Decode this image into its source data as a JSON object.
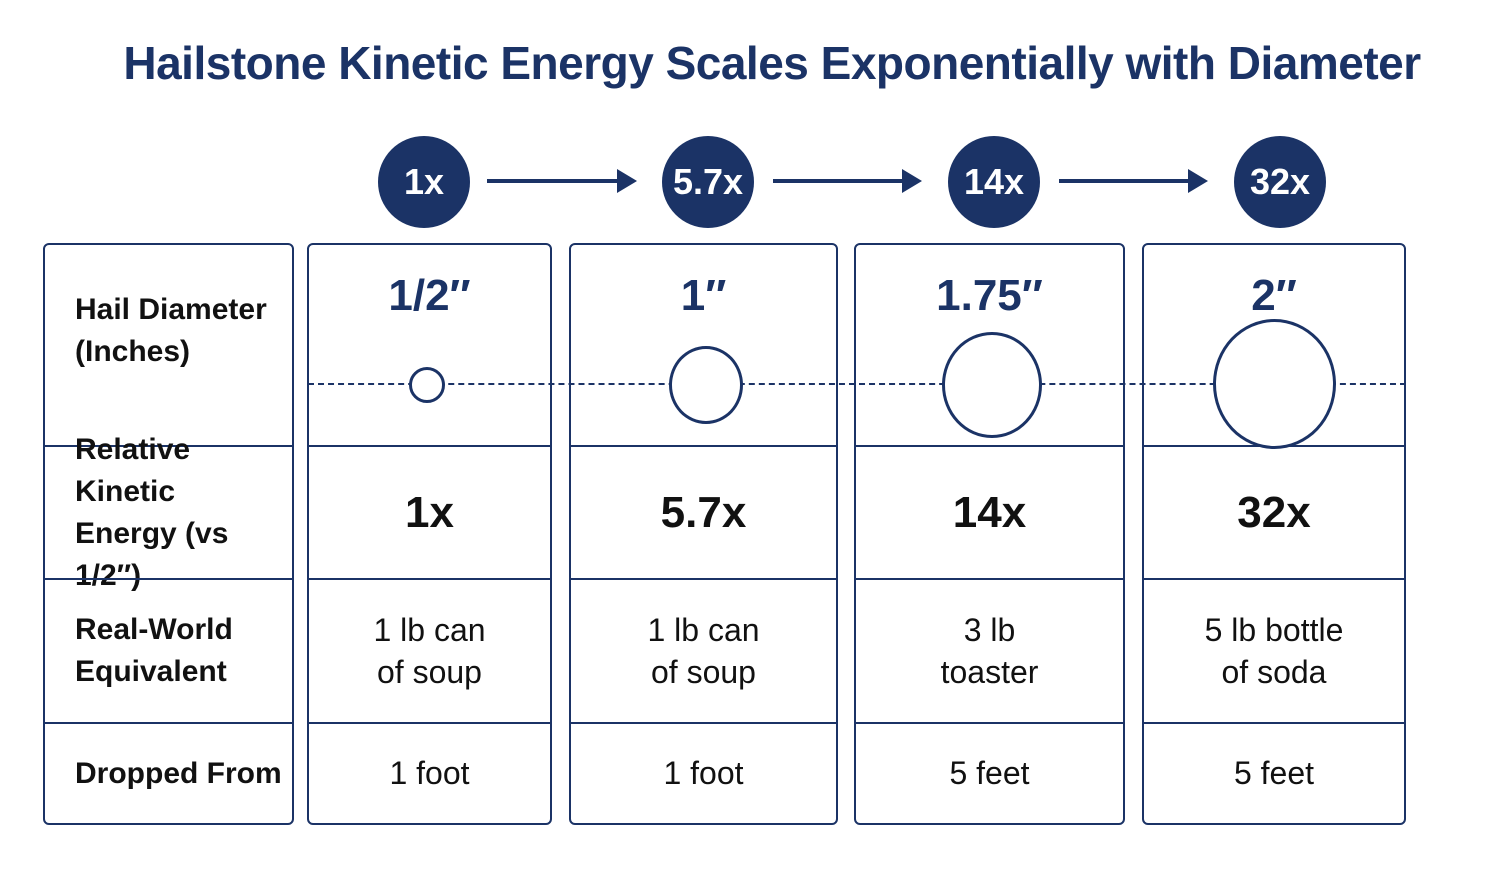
{
  "title": "Hailstone Kinetic Energy Scales Exponentially with Diameter",
  "colors": {
    "primary": "#1b3366",
    "text": "#111111",
    "background": "#ffffff"
  },
  "row_labels": {
    "diameter": [
      "Hail Diameter",
      "(Inches)"
    ],
    "energy": [
      "Relative Kinetic",
      "Energy (vs 1/2″)"
    ],
    "equivalent": [
      "Real-World",
      "Equivalent"
    ],
    "dropped": "Dropped From"
  },
  "badges": [
    "1x",
    "5.7x",
    "14x",
    "32x"
  ],
  "columns": [
    {
      "diameter": "1/2″",
      "diameter_in": 0.5,
      "energy": "1x",
      "equivalent": [
        "1 lb can",
        "of soup"
      ],
      "dropped": "1 foot"
    },
    {
      "diameter": "1″",
      "diameter_in": 1,
      "energy": "5.7x",
      "equivalent": [
        "1 lb can",
        "of soup"
      ],
      "dropped": "1 foot"
    },
    {
      "diameter": "1.75″",
      "diameter_in": 1.75,
      "energy": "14x",
      "equivalent": [
        "3 lb",
        "toaster"
      ],
      "dropped": "5 feet"
    },
    {
      "diameter": "2″",
      "diameter_in": 2,
      "energy": "32x",
      "equivalent": [
        "5 lb bottle",
        "of soda"
      ],
      "dropped": "5 feet"
    }
  ]
}
